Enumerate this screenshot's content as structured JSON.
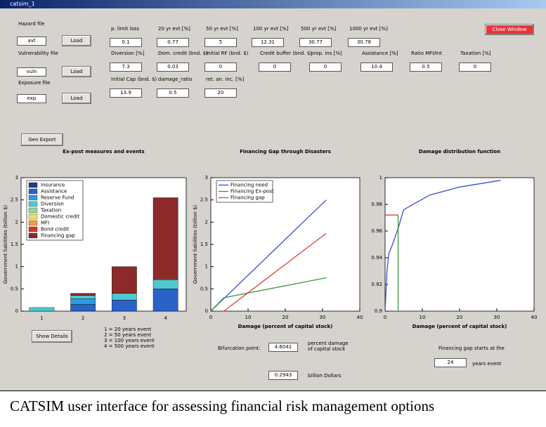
{
  "window_title": "catsim_1",
  "files": [
    {
      "label": "Hazard file",
      "value": "avt",
      "button": "Load"
    },
    {
      "label": "Vulnerability file",
      "value": "vuln",
      "button": "Load"
    },
    {
      "label": "Exposure file",
      "value": "exp",
      "button": "Load"
    }
  ],
  "fields": [
    {
      "label": "p. limit loss",
      "value": "0.1"
    },
    {
      "label": "20 yr evt [%]",
      "value": "0.77"
    },
    {
      "label": "50 yr evt [%]",
      "value": "5"
    },
    {
      "label": "100 yr evt [%]",
      "value": "12.31"
    },
    {
      "label": "500 yr evt [%]",
      "value": "30.77"
    },
    {
      "label": "1000 yr evt [%]",
      "value": "30.78"
    },
    {
      "label": "Diversion [%]",
      "value": "7.3"
    },
    {
      "label": "Dom. credit (bnd. $)",
      "value": "0.03"
    },
    {
      "label": "Initial RF (bnd. $)",
      "value": "0"
    },
    {
      "label": "Credit buffer (bnd. $)",
      "value": "0"
    },
    {
      "label": "prop. ins [%]",
      "value": "0"
    },
    {
      "label": "Assistance [%]",
      "value": "10.4"
    },
    {
      "label": "Ratio MFI/Int",
      "value": "0.5"
    },
    {
      "label": "Taxation [%]",
      "value": "0"
    },
    {
      "label": "Initial Cap (bnd. $)",
      "value": "13.9"
    },
    {
      "label": "damage_ratio",
      "value": "0.5"
    },
    {
      "label": "ret. an. inc. [%]",
      "value": "20"
    }
  ],
  "close_button": "Close Window",
  "export_button": "Gen Export",
  "charts": [
    {
      "type": "bar",
      "title": "Ex-post measures and events",
      "ylabel": "Government liabilities (billion $)",
      "categories": [
        "1",
        "2",
        "3",
        "4"
      ],
      "ylim": [
        0,
        3
      ],
      "yticks": [
        0,
        0.5,
        1,
        1.5,
        2,
        2.5,
        3
      ],
      "series": [
        {
          "name": "Insurance",
          "color": "#1f3f8f",
          "values": [
            0,
            0,
            0,
            0
          ]
        },
        {
          "name": "Assistance",
          "color": "#2a62c8",
          "values": [
            0,
            0.15,
            0.25,
            0.5
          ]
        },
        {
          "name": "Reserve Fund",
          "color": "#2f9be0",
          "values": [
            0,
            0.13,
            0,
            0
          ]
        },
        {
          "name": "Diversion",
          "color": "#4fc8cf",
          "values": [
            0.08,
            0.07,
            0.15,
            0.2
          ]
        },
        {
          "name": "Taxation",
          "color": "#8fd8a0",
          "values": [
            0,
            0,
            0,
            0.02
          ]
        },
        {
          "name": "Domestic credit",
          "color": "#f0e060",
          "values": [
            0,
            0,
            0,
            0
          ]
        },
        {
          "name": "MFI",
          "color": "#f0a040",
          "values": [
            0,
            0,
            0,
            0
          ]
        },
        {
          "name": "Bond credit",
          "color": "#e03030",
          "values": [
            0,
            0,
            0,
            0
          ]
        },
        {
          "name": "Financing gap",
          "color": "#8c2a2a",
          "values": [
            0,
            0.05,
            0.6,
            1.83
          ]
        }
      ]
    },
    {
      "type": "line",
      "title": "Financing Gap through Disasters",
      "ylabel": "Government liabilities (billion $)",
      "xlabel": "Damage (percent of capital stock)",
      "xlim": [
        0,
        40
      ],
      "xticks": [
        0,
        10,
        20,
        30,
        40
      ],
      "ylim": [
        0,
        3
      ],
      "yticks": [
        0,
        0.5,
        1,
        1.5,
        2,
        2.5,
        3
      ],
      "series": [
        {
          "name": "Financing need",
          "color": "#3a4fd0",
          "x": [
            0,
            31
          ],
          "values": [
            0,
            2.5
          ]
        },
        {
          "name": "Financing Ex-post",
          "color": "#3a9a3a",
          "x": [
            0,
            3.5,
            31
          ],
          "values": [
            0,
            0.3,
            0.75
          ]
        },
        {
          "name": "Financing gap",
          "color": "#e04040",
          "x": [
            3.5,
            31
          ],
          "values": [
            0,
            1.75
          ]
        }
      ]
    },
    {
      "type": "line",
      "title": "Damage distribution function",
      "xlabel": "Damage (percent of capital stock)",
      "xlim": [
        0,
        40
      ],
      "xticks": [
        0,
        10,
        20,
        30,
        40
      ],
      "ylim": [
        0.9,
        1
      ],
      "yticks": [
        0.9,
        0.92,
        0.94,
        0.96,
        0.98,
        1
      ],
      "series": [
        {
          "color": "#3a4fd0",
          "x": [
            0,
            0.5,
            1,
            2,
            3.5,
            5,
            12,
            20,
            31
          ],
          "values": [
            0.9,
            0.93,
            0.943,
            0.95,
            0.962,
            0.976,
            0.987,
            0.993,
            0.998
          ]
        },
        {
          "color": "#e04040",
          "x": [
            0,
            3.5
          ],
          "values": [
            0.972,
            0.972
          ]
        },
        {
          "color": "#3a9a3a",
          "x": [
            3.5,
            3.5
          ],
          "values": [
            0.9,
            0.972
          ]
        }
      ]
    }
  ],
  "show_details": "Show Details",
  "event_key": [
    "1 = 20 years event",
    "2 = 50 years event",
    "3 = 100 years event",
    "4 = 500 years event"
  ],
  "bifurcation": {
    "label": "Bifurcation point:",
    "value": "4.6041",
    "unit": "percent damage of capital stock",
    "value2": "0.2943",
    "unit2": "billion Dollars"
  },
  "gap_start": {
    "label": "Financing gap starts at the",
    "value": "24",
    "unit": "years event"
  },
  "caption": "CATSIM user interface for assessing financial risk management options"
}
